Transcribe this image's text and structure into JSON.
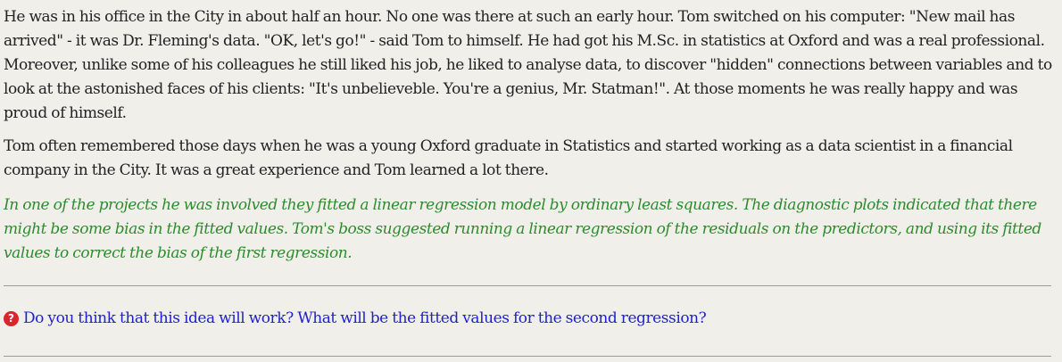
{
  "story": {
    "paragraph1": "He was in his office in the City in about half an hour. No one was there at such an early hour. Tom switched on his computer: \"New mail has arrived\" - it was Dr. Fleming's data. \"OK, let's go!\" - said Tom to himself. He had got his M.Sc. in statistics at Oxford and was a real professional. Moreover, unlike some of his colleagues he still liked his job, he liked to analyse data, to discover \"hidden\" connections between variables and to look at the astonished faces of his clients: \"It's unbelieveble. You're a genius, Mr. Statman!\". At those moments he was really happy and was proud of himself.",
    "paragraph2": "Tom often remembered those days when he was a young Oxford graduate in Statistics and started working as a data scientist in a financial company in the City. It was a great experience and Tom learned a lot there.",
    "paragraph3": "In one of the projects he was involved they fitted a linear regression model by ordinary least squares. The diagnostic plots indicated that there might be some bias in the fitted values. Tom's boss suggested running a linear regression of the residuals on the predictors, and using its fitted values to correct the bias of the first regression."
  },
  "question": {
    "icon": "question-circle-icon",
    "icon_glyph": "?",
    "icon_color": "#d9262c",
    "text": "Do you think that this idea will work? What will be the fitted values for the second regression?",
    "link_color": "#1f1fcc"
  },
  "colors": {
    "background": "#f0efea",
    "body_text": "#222222",
    "highlight_text": "#2e8b2e"
  }
}
